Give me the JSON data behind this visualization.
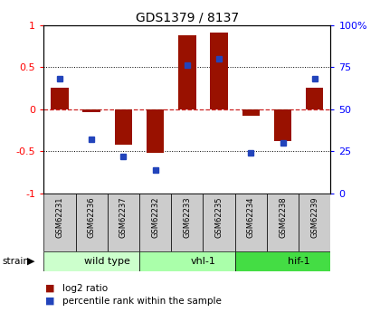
{
  "title": "GDS1379 / 8137",
  "samples": [
    "GSM62231",
    "GSM62236",
    "GSM62237",
    "GSM62232",
    "GSM62233",
    "GSM62235",
    "GSM62234",
    "GSM62238",
    "GSM62239"
  ],
  "log2_ratio": [
    0.25,
    -0.04,
    -0.42,
    -0.52,
    0.88,
    0.91,
    -0.08,
    -0.38,
    0.25
  ],
  "percentile_rank": [
    68,
    32,
    22,
    14,
    76,
    80,
    24,
    30,
    68
  ],
  "groups": [
    {
      "label": "wild type",
      "start": 0,
      "end": 3,
      "color": "#ccffcc"
    },
    {
      "label": "vhl-1",
      "start": 3,
      "end": 6,
      "color": "#aaffaa"
    },
    {
      "label": "hif-1",
      "start": 6,
      "end": 9,
      "color": "#44dd44"
    }
  ],
  "ylim": [
    -1,
    1
  ],
  "yticks_left": [
    -1,
    -0.5,
    0,
    0.5,
    1
  ],
  "yticks_right_pos": [
    -1,
    -0.5,
    0,
    0.5,
    1
  ],
  "yticks_right_labels": [
    "0",
    "25",
    "50",
    "75",
    "100%"
  ],
  "bar_color": "#991100",
  "dot_color": "#2244bb",
  "zero_line_color": "#cc2222",
  "bg_color": "#ffffff",
  "legend_items": [
    {
      "label": "log2 ratio",
      "color": "#991100"
    },
    {
      "label": "percentile rank within the sample",
      "color": "#2244bb"
    }
  ]
}
